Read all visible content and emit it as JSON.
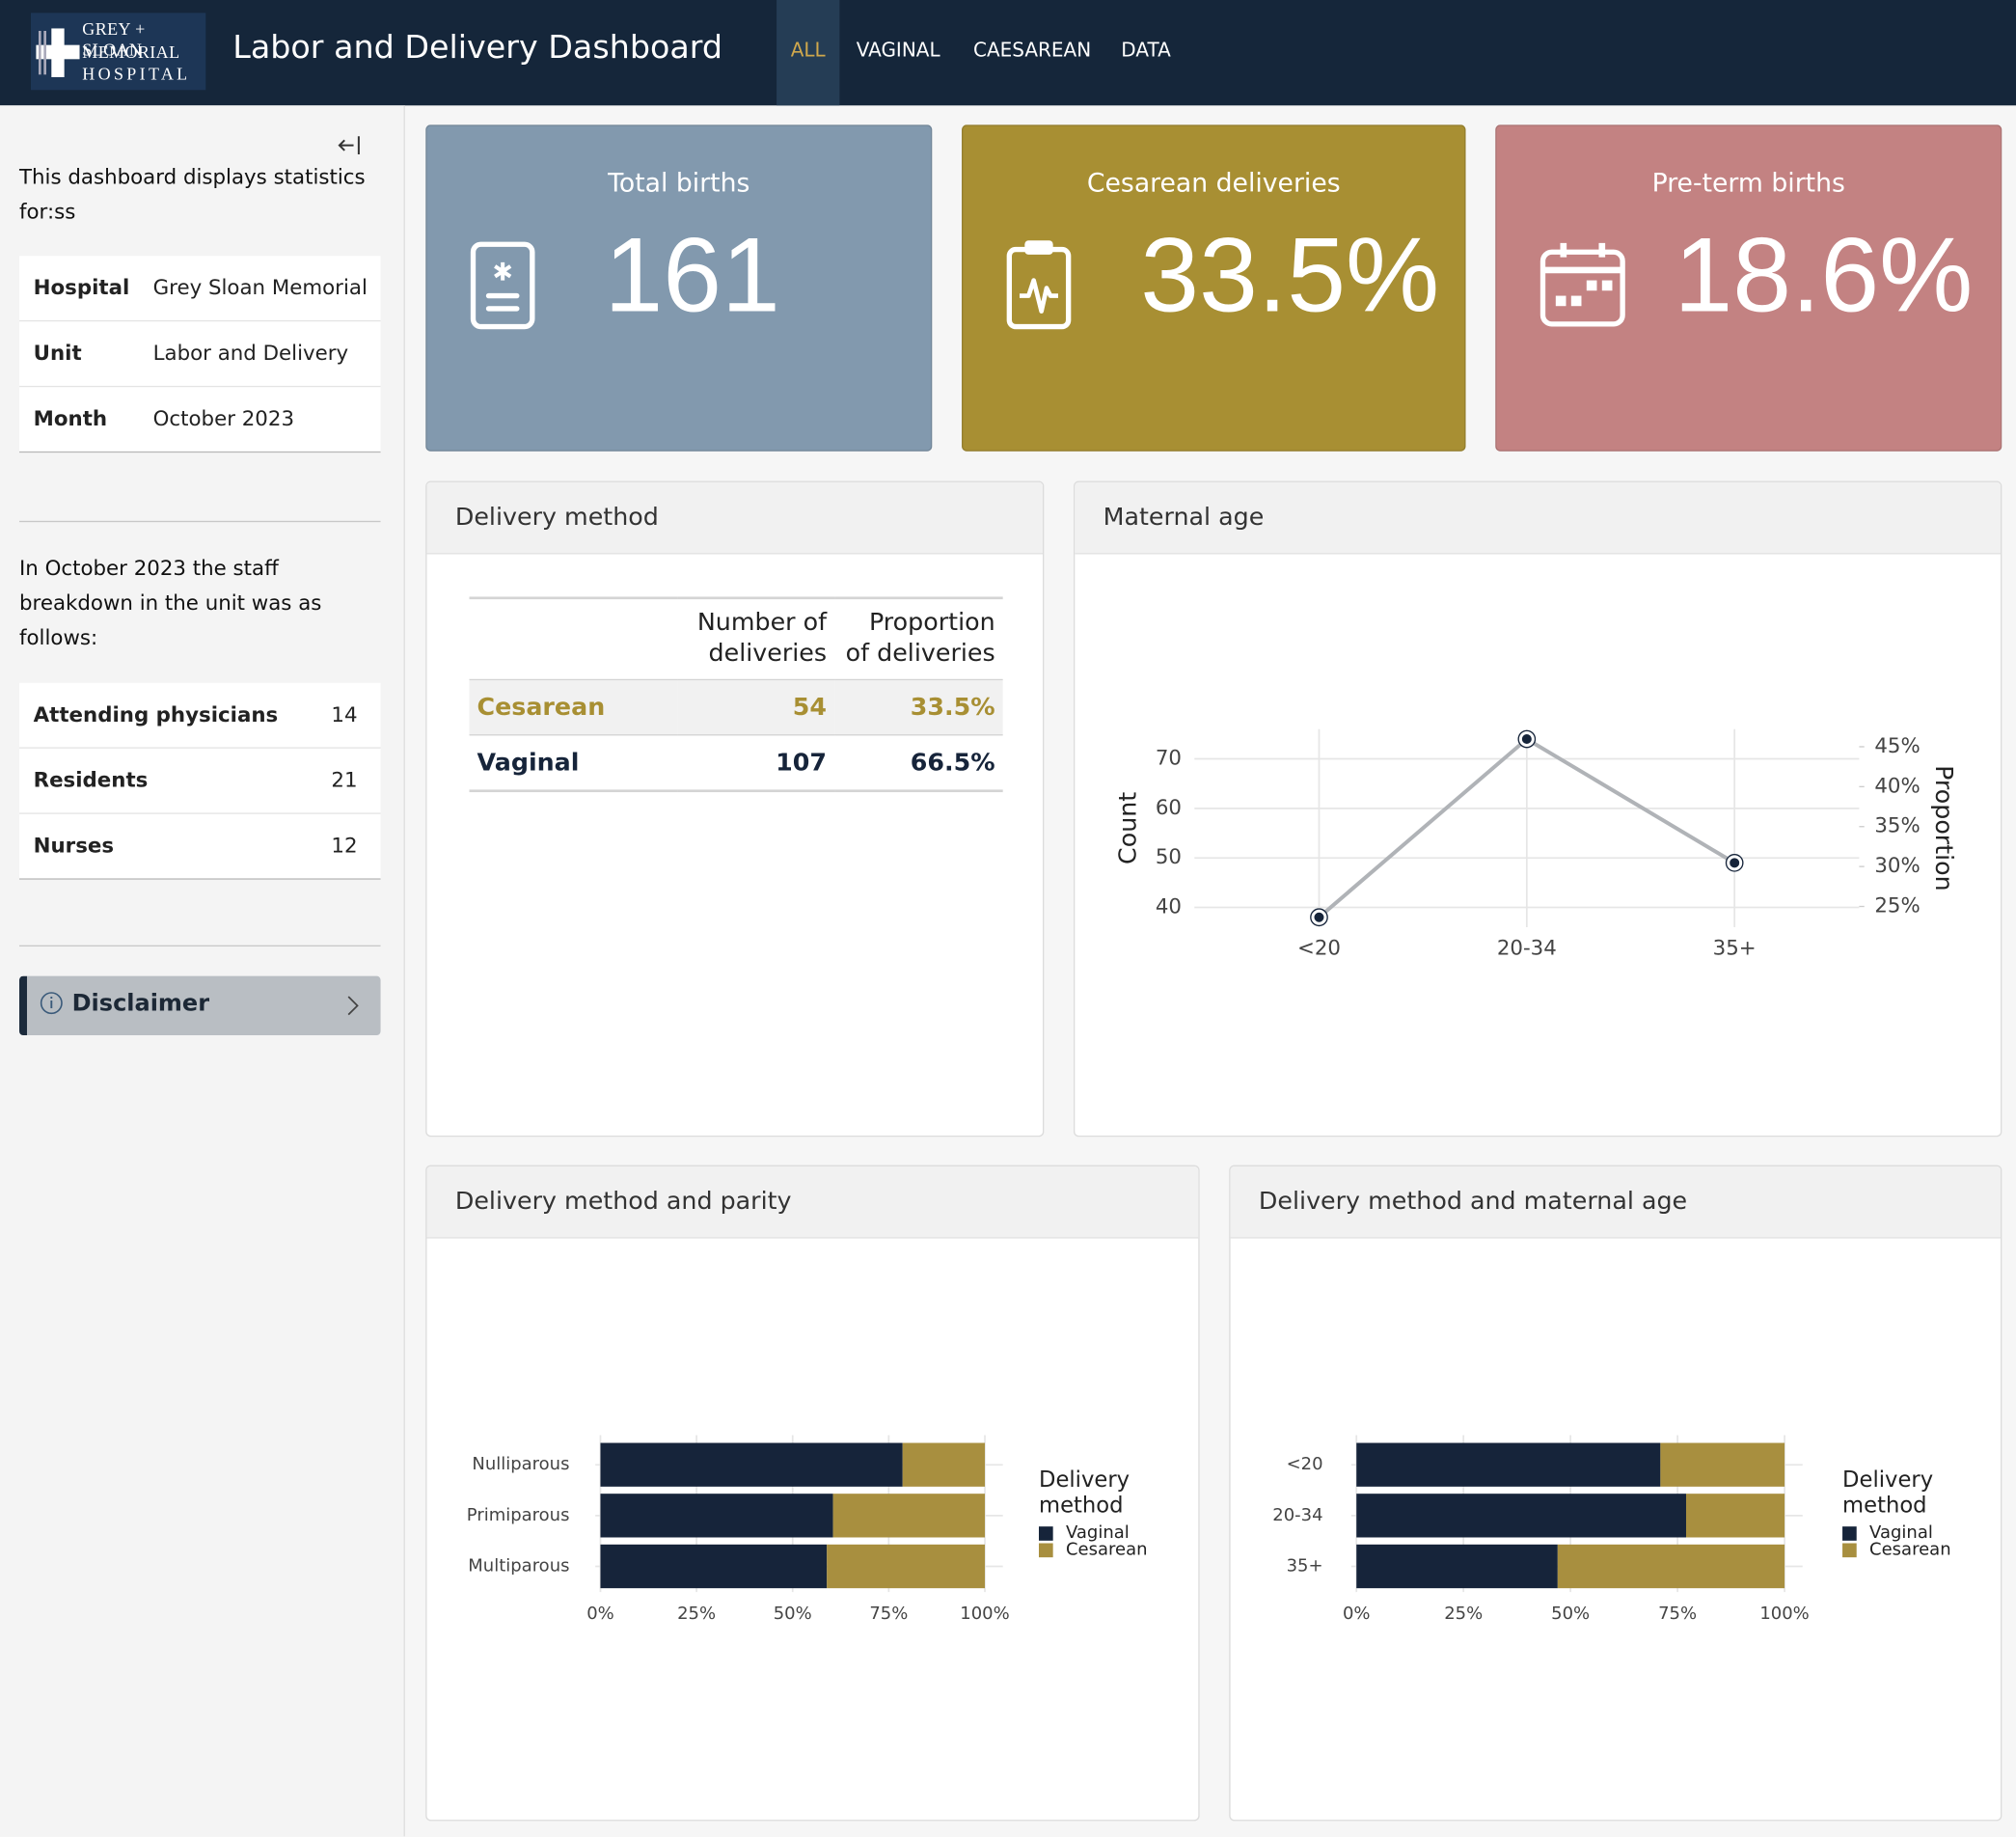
{
  "header": {
    "logo": [
      "GREY + SLOAN",
      "MEMORIAL",
      "HOSPITAL"
    ],
    "title": "Labor and Delivery Dashboard",
    "nav": [
      "ALL",
      "VAGINAL",
      "CAESAREAN",
      "DATA"
    ]
  },
  "sidebar": {
    "intro": "This dashboard displays statistics for:ss",
    "info": [
      {
        "label": "Hospital",
        "value": "Grey Sloan Memorial"
      },
      {
        "label": "Unit",
        "value": "Labor and Delivery"
      },
      {
        "label": "Month",
        "value": "October 2023"
      }
    ],
    "staff_intro": "In October 2023 the staff breakdown in the unit was as follows:",
    "staff": [
      {
        "role": "Attending physicians",
        "count": 14
      },
      {
        "role": "Residents",
        "count": 21
      },
      {
        "role": "Nurses",
        "count": 12
      }
    ],
    "disclaimer": "Disclaimer"
  },
  "value_boxes": [
    {
      "title": "Total births",
      "value": "161",
      "color": "#8299ae"
    },
    {
      "title": "Cesarean deliveries",
      "value": "33.5%",
      "color": "#a88f33"
    },
    {
      "title": "Pre-term births",
      "value": "18.6%",
      "color": "#c38282"
    }
  ],
  "delivery_table": {
    "title": "Delivery method",
    "columns": [
      "Number of deliveries",
      "Proportion of deliveries"
    ],
    "rows": [
      {
        "method": "Cesarean",
        "count": 54,
        "proportion": "33.5%"
      },
      {
        "method": "Vaginal",
        "count": 107,
        "proportion": "66.5%"
      }
    ]
  },
  "chart_data": [
    {
      "type": "line",
      "title": "Maternal age",
      "categories": [
        "<20",
        "20-34",
        "35+"
      ],
      "values": [
        38,
        74,
        49
      ],
      "color": "#b0b3b7",
      "point_color": "#16243a",
      "y_label": "Count",
      "y2_label": "Proportion",
      "ylim": [
        36,
        76
      ],
      "yticks": [
        40,
        50,
        60,
        70
      ],
      "y2lim": [
        22.4,
        47.2
      ],
      "y2ticks": [
        {
          "value": 25,
          "label": "25%"
        },
        {
          "value": 30,
          "label": "30%"
        },
        {
          "value": 35,
          "label": "35%"
        },
        {
          "value": 40,
          "label": "40%"
        },
        {
          "value": 45,
          "label": "45%"
        }
      ],
      "grid": true
    },
    {
      "type": "stacked_bar",
      "orientation": "horizontal",
      "title": "Delivery method and parity",
      "categories": [
        "Nulliparous",
        "Primiparous",
        "Multiparous"
      ],
      "series": [
        {
          "name": "Vaginal",
          "color": "#16243a",
          "values": [
            78.6,
            60.5,
            58.9
          ]
        },
        {
          "name": "Cesarean",
          "color": "#a88f3f",
          "values": [
            21.4,
            39.5,
            41.1
          ]
        }
      ],
      "legend_title": "Delivery method",
      "xlim": [
        0,
        100
      ],
      "xticks": [
        {
          "value": 0,
          "label": "0%"
        },
        {
          "value": 25,
          "label": "25%"
        },
        {
          "value": 50,
          "label": "50%"
        },
        {
          "value": 75,
          "label": "75%"
        },
        {
          "value": 100,
          "label": "100%"
        }
      ],
      "grid": true
    },
    {
      "type": "stacked_bar",
      "orientation": "horizontal",
      "title": "Delivery method and maternal age",
      "categories": [
        "<20",
        "20-34",
        "35+"
      ],
      "series": [
        {
          "name": "Vaginal",
          "color": "#16243a",
          "values": [
            71,
            77,
            47
          ]
        },
        {
          "name": "Cesarean",
          "color": "#a88f3f",
          "values": [
            29,
            23,
            53
          ]
        }
      ],
      "legend_title": "Delivery method",
      "xlim": [
        0,
        100
      ],
      "xticks": [
        {
          "value": 0,
          "label": "0%"
        },
        {
          "value": 25,
          "label": "25%"
        },
        {
          "value": 50,
          "label": "50%"
        },
        {
          "value": 75,
          "label": "75%"
        },
        {
          "value": 100,
          "label": "100%"
        }
      ],
      "grid": true
    }
  ]
}
